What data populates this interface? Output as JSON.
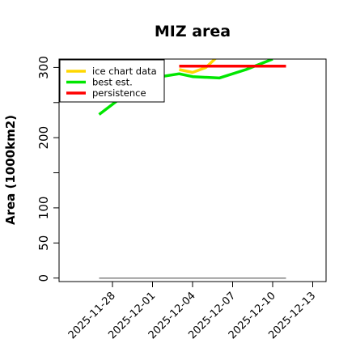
{
  "chart_data": {
    "type": "line",
    "title": "MIZ area",
    "xlabel": "",
    "ylabel": "Area (1000km2)",
    "x_ticks": [
      "2025-11-28",
      "2025-12-01",
      "2025-12-04",
      "2025-12-07",
      "2025-12-10",
      "2025-12-13"
    ],
    "y_ticks": [
      0,
      50,
      100,
      200,
      300
    ],
    "xlim": [
      "2025-11-24",
      "2025-12-14"
    ],
    "ylim": [
      -5,
      312
    ],
    "grid": false,
    "legend_position": "top-left",
    "series": [
      {
        "name": "ice chart data",
        "color": "#ffd700",
        "points": [
          [
            "2025-12-03",
            297
          ],
          [
            "2025-12-04",
            293
          ],
          [
            "2025-12-05",
            300
          ],
          [
            "2025-12-06",
            318
          ]
        ]
      },
      {
        "name": "best est.",
        "color": "#00e600",
        "points": [
          [
            "2025-11-27",
            233
          ],
          [
            "2025-11-29",
            262
          ],
          [
            "2025-12-01",
            285
          ],
          [
            "2025-12-03",
            291
          ],
          [
            "2025-12-04",
            287
          ],
          [
            "2025-12-06",
            285
          ],
          [
            "2025-12-08",
            297
          ],
          [
            "2025-12-10",
            312
          ]
        ]
      },
      {
        "name": "persistence",
        "color": "#ff0000",
        "points": [
          [
            "2025-12-03",
            302
          ],
          [
            "2025-12-11",
            302
          ]
        ]
      },
      {
        "name": "",
        "color": "#808080",
        "points": [
          [
            "2025-11-27",
            0
          ],
          [
            "2025-12-11",
            0
          ]
        ]
      }
    ]
  }
}
